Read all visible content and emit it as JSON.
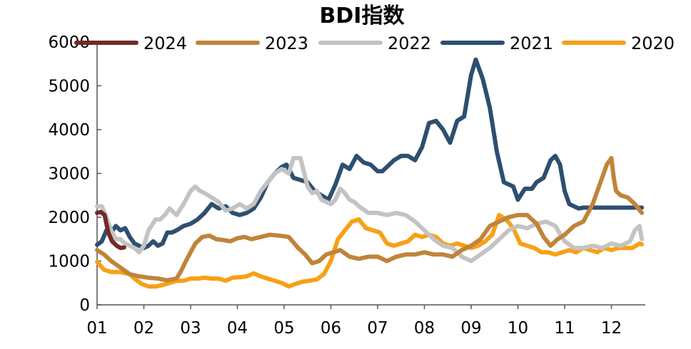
{
  "chart_data": {
    "type": "line",
    "title": "BDI指数",
    "xlabel": "",
    "ylabel": "",
    "ylim": [
      0,
      6000
    ],
    "yticks": [
      "0",
      "1000",
      "2000",
      "3000",
      "4000",
      "5000",
      "6000"
    ],
    "xticks": [
      "01",
      "02",
      "03",
      "04",
      "05",
      "06",
      "07",
      "08",
      "09",
      "10",
      "11",
      "12"
    ],
    "xlim": [
      0,
      11.7
    ],
    "legend_position": "top",
    "series": [
      {
        "name": "2024",
        "color": "#722a2a",
        "x": [
          0,
          0.08,
          0.16,
          0.24,
          0.32,
          0.42,
          0.5,
          0.58
        ],
        "values": [
          2100,
          2120,
          2050,
          1650,
          1450,
          1350,
          1300,
          1310
        ]
      },
      {
        "name": "2023",
        "color": "#c0843a",
        "x": [
          0,
          0.15,
          0.3,
          0.5,
          0.7,
          0.9,
          1.1,
          1.3,
          1.5,
          1.7,
          1.8,
          1.9,
          2.0,
          2.1,
          2.25,
          2.4,
          2.55,
          2.7,
          2.85,
          3.0,
          3.15,
          3.3,
          3.5,
          3.7,
          3.9,
          4.1,
          4.3,
          4.45,
          4.6,
          4.75,
          4.9,
          5.05,
          5.2,
          5.4,
          5.6,
          5.8,
          6.0,
          6.2,
          6.4,
          6.6,
          6.8,
          7.0,
          7.2,
          7.4,
          7.6,
          7.8,
          8.0,
          8.2,
          8.4,
          8.6,
          8.8,
          9.0,
          9.2,
          9.4,
          9.55,
          9.7,
          9.85,
          10.0,
          10.2,
          10.4,
          10.6,
          10.8,
          10.9,
          11.0,
          11.05,
          11.1,
          11.2,
          11.35,
          11.5,
          11.65
        ],
        "values": [
          1250,
          1150,
          1000,
          850,
          700,
          650,
          620,
          600,
          560,
          600,
          780,
          1000,
          1200,
          1400,
          1550,
          1580,
          1500,
          1480,
          1450,
          1520,
          1550,
          1500,
          1550,
          1600,
          1580,
          1550,
          1300,
          1150,
          950,
          1000,
          1150,
          1200,
          1250,
          1100,
          1050,
          1100,
          1100,
          1000,
          1100,
          1150,
          1150,
          1200,
          1150,
          1150,
          1100,
          1250,
          1350,
          1500,
          1800,
          1900,
          2000,
          2050,
          2050,
          1850,
          1550,
          1350,
          1500,
          1600,
          1800,
          1900,
          2300,
          2900,
          3200,
          3350,
          2900,
          2600,
          2500,
          2450,
          2300,
          2100
        ]
      },
      {
        "name": "2022",
        "color": "#c3c3c3",
        "x": [
          0,
          0.1,
          0.2,
          0.3,
          0.4,
          0.5,
          0.6,
          0.7,
          0.8,
          0.9,
          1.0,
          1.1,
          1.25,
          1.35,
          1.45,
          1.55,
          1.7,
          1.85,
          2.0,
          2.1,
          2.2,
          2.3,
          2.45,
          2.6,
          2.75,
          2.9,
          3.05,
          3.2,
          3.35,
          3.5,
          3.65,
          3.8,
          3.95,
          4.1,
          4.2,
          4.35,
          4.5,
          4.6,
          4.7,
          4.8,
          4.9,
          5.0,
          5.1,
          5.2,
          5.3,
          5.4,
          5.5,
          5.6,
          5.8,
          6.0,
          6.2,
          6.4,
          6.6,
          6.8,
          7.0,
          7.2,
          7.4,
          7.6,
          7.8,
          8.0,
          8.2,
          8.4,
          8.6,
          8.8,
          9.0,
          9.2,
          9.4,
          9.6,
          9.8,
          10.0,
          10.2,
          10.4,
          10.6,
          10.8,
          11.0,
          11.2,
          11.4,
          11.5,
          11.6,
          11.65
        ],
        "values": [
          2250,
          2250,
          2000,
          1700,
          1500,
          1500,
          1400,
          1350,
          1300,
          1200,
          1350,
          1700,
          1950,
          1950,
          2050,
          2200,
          2050,
          2300,
          2600,
          2700,
          2600,
          2550,
          2450,
          2350,
          2150,
          2200,
          2300,
          2200,
          2300,
          2600,
          2800,
          3000,
          3100,
          3000,
          3350,
          3350,
          2700,
          2550,
          2600,
          2400,
          2350,
          2300,
          2400,
          2650,
          2550,
          2400,
          2350,
          2250,
          2100,
          2100,
          2050,
          2100,
          2050,
          1900,
          1700,
          1500,
          1350,
          1300,
          1100,
          1000,
          1150,
          1300,
          1500,
          1700,
          1800,
          1750,
          1850,
          1900,
          1800,
          1450,
          1300,
          1300,
          1350,
          1300,
          1400,
          1350,
          1450,
          1700,
          1800,
          1500
        ]
      },
      {
        "name": "2021",
        "color": "#2d4f70",
        "x": [
          0,
          0.1,
          0.2,
          0.3,
          0.4,
          0.5,
          0.6,
          0.7,
          0.8,
          0.9,
          1.0,
          1.1,
          1.2,
          1.3,
          1.4,
          1.5,
          1.6,
          1.7,
          1.85,
          2.0,
          2.15,
          2.3,
          2.45,
          2.6,
          2.75,
          2.9,
          3.05,
          3.2,
          3.35,
          3.5,
          3.65,
          3.8,
          3.95,
          4.05,
          4.2,
          4.35,
          4.5,
          4.65,
          4.8,
          4.95,
          5.1,
          5.25,
          5.4,
          5.55,
          5.7,
          5.85,
          6.0,
          6.1,
          6.2,
          6.35,
          6.5,
          6.65,
          6.8,
          6.95,
          7.1,
          7.25,
          7.4,
          7.55,
          7.7,
          7.85,
          8.0,
          8.1,
          8.25,
          8.4,
          8.55,
          8.7,
          8.8,
          8.9,
          9.0,
          9.15,
          9.3,
          9.4,
          9.55,
          9.7,
          9.8,
          9.9,
          10.0,
          10.1,
          10.2,
          10.3,
          10.4,
          10.5,
          10.6,
          10.7,
          10.8,
          10.9,
          11.0,
          11.1,
          11.2,
          11.3,
          11.4,
          11.5,
          11.6,
          11.65
        ],
        "values": [
          1370,
          1450,
          1700,
          1650,
          1800,
          1700,
          1750,
          1550,
          1400,
          1350,
          1300,
          1350,
          1450,
          1350,
          1400,
          1650,
          1650,
          1700,
          1800,
          1850,
          1950,
          2100,
          2300,
          2200,
          2250,
          2100,
          2050,
          2100,
          2200,
          2450,
          2800,
          3000,
          3150,
          3200,
          2900,
          2850,
          2800,
          2600,
          2500,
          2400,
          2750,
          3200,
          3100,
          3400,
          3250,
          3200,
          3050,
          3050,
          3150,
          3300,
          3400,
          3400,
          3300,
          3600,
          4150,
          4200,
          4000,
          3700,
          4200,
          4300,
          5250,
          5600,
          5150,
          4500,
          3500,
          2800,
          2750,
          2700,
          2400,
          2650,
          2650,
          2800,
          2900,
          3300,
          3400,
          3200,
          2600,
          2300,
          2250,
          2200,
          2220,
          2220,
          2220,
          2220,
          2220,
          2220,
          2220,
          2220,
          2220,
          2220,
          2220,
          2220,
          2220,
          2220
        ],
        "x_note": ""
      },
      {
        "name": "2020",
        "color": "#f8a016",
        "x": [
          0,
          0.15,
          0.3,
          0.5,
          0.7,
          0.8,
          0.95,
          1.1,
          1.25,
          1.4,
          1.55,
          1.7,
          1.85,
          2.0,
          2.15,
          2.3,
          2.45,
          2.6,
          2.75,
          2.9,
          3.05,
          3.2,
          3.35,
          3.5,
          3.65,
          3.8,
          3.95,
          4.1,
          4.25,
          4.4,
          4.55,
          4.7,
          4.85,
          5.0,
          5.15,
          5.3,
          5.45,
          5.6,
          5.75,
          5.9,
          6.05,
          6.2,
          6.35,
          6.5,
          6.65,
          6.8,
          6.95,
          7.1,
          7.25,
          7.4,
          7.55,
          7.7,
          7.85,
          8.0,
          8.15,
          8.3,
          8.45,
          8.6,
          8.75,
          8.9,
          9.05,
          9.2,
          9.35,
          9.5,
          9.65,
          9.8,
          9.95,
          10.1,
          10.25,
          10.4,
          10.55,
          10.7,
          10.85,
          11.0,
          11.15,
          11.3,
          11.45,
          11.6,
          11.65
        ],
        "values": [
          980,
          800,
          750,
          750,
          700,
          600,
          480,
          420,
          420,
          450,
          500,
          550,
          550,
          600,
          600,
          620,
          600,
          600,
          550,
          620,
          630,
          650,
          720,
          650,
          600,
          550,
          500,
          420,
          480,
          530,
          550,
          580,
          700,
          1000,
          1500,
          1700,
          1900,
          1950,
          1750,
          1700,
          1650,
          1400,
          1350,
          1400,
          1450,
          1600,
          1550,
          1600,
          1550,
          1400,
          1350,
          1400,
          1350,
          1300,
          1350,
          1450,
          1600,
          2050,
          1950,
          1750,
          1400,
          1350,
          1300,
          1200,
          1200,
          1150,
          1200,
          1250,
          1200,
          1300,
          1250,
          1200,
          1300,
          1250,
          1300,
          1300,
          1300,
          1400,
          1380
        ]
      }
    ]
  }
}
